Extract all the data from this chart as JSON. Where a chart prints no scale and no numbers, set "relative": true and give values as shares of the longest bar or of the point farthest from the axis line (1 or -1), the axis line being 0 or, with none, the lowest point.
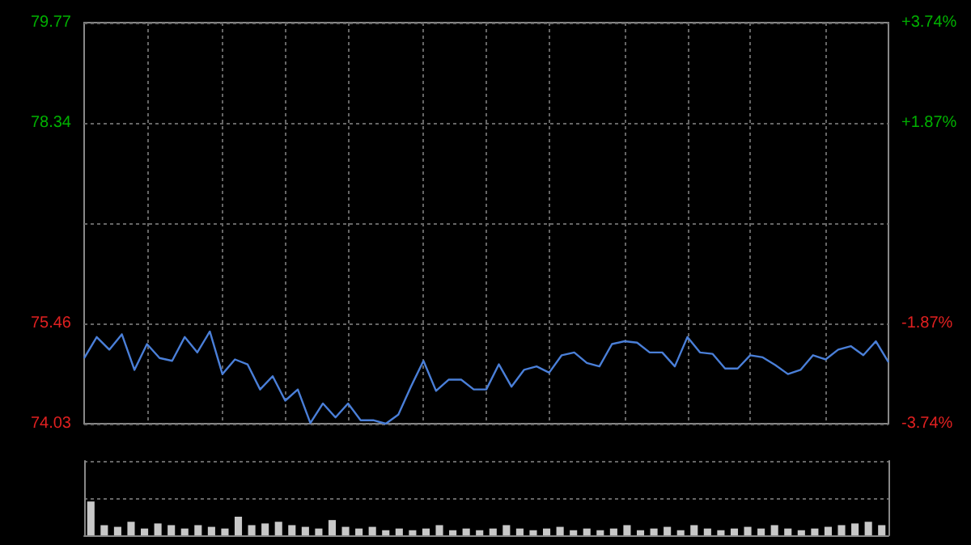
{
  "chart_data": [
    {
      "type": "line",
      "categories": [
        null,
        null,
        null,
        null,
        null,
        null,
        null,
        null,
        null,
        null,
        null,
        null,
        null,
        null,
        null,
        null,
        null,
        null,
        null,
        null,
        null,
        null,
        null,
        null,
        null,
        null,
        null,
        null,
        null,
        null,
        null,
        null,
        null,
        null,
        null,
        null,
        null,
        null,
        null,
        null,
        null,
        null,
        null,
        null,
        null,
        null,
        null,
        null,
        null,
        null,
        null,
        null,
        null,
        null,
        null,
        null,
        null,
        null,
        null,
        null,
        null,
        null,
        null,
        null,
        null
      ],
      "series": [
        {
          "color": "#4a7fd8",
          "values": [
            74.97,
            75.27,
            75.09,
            75.31,
            74.8,
            75.17,
            74.97,
            74.93,
            75.27,
            75.05,
            75.35,
            74.74,
            74.95,
            74.88,
            74.52,
            74.71,
            74.36,
            74.52,
            74.04,
            74.32,
            74.12,
            74.32,
            74.08,
            74.08,
            74.03,
            74.16,
            74.56,
            74.93,
            74.5,
            74.66,
            74.66,
            74.52,
            74.52,
            74.88,
            74.56,
            74.8,
            74.85,
            74.76,
            75.01,
            75.05,
            74.9,
            74.85,
            75.17,
            75.21,
            75.19,
            75.05,
            75.05,
            74.85,
            75.27,
            75.05,
            75.03,
            74.82,
            74.82,
            75.01,
            74.98,
            74.87,
            74.74,
            74.8,
            75.01,
            74.95,
            75.09,
            75.14,
            75.01,
            75.21,
            74.91
          ]
        }
      ],
      "ylim": [
        74.03,
        79.77
      ],
      "yticks": [
        74.03,
        75.46,
        {
          "value": 76.9,
          "label": null
        },
        78.34,
        79.77
      ],
      "y2lim": [
        -3.74,
        3.74
      ],
      "y2ticks": [
        {
          "value": -3.74,
          "label": "-3.74%"
        },
        {
          "value": -1.87,
          "label": "-1.87%"
        },
        {
          "value": 0,
          "label": null
        },
        {
          "value": 1.87,
          "label": "+1.87%"
        },
        {
          "value": 3.74,
          "label": "+3.74%"
        }
      ],
      "tick_labels": "y",
      "grid": true
    },
    {
      "type": "bar",
      "relative": true,
      "categories": [
        null,
        null,
        null,
        null,
        null,
        null,
        null,
        null,
        null,
        null,
        null,
        null,
        null,
        null,
        null,
        null,
        null,
        null,
        null,
        null,
        null,
        null,
        null,
        null,
        null,
        null,
        null,
        null,
        null,
        null,
        null,
        null,
        null,
        null,
        null,
        null,
        null,
        null,
        null,
        null,
        null,
        null,
        null,
        null,
        null,
        null,
        null,
        null,
        null,
        null,
        null,
        null,
        null,
        null,
        null,
        null,
        null,
        null,
        null,
        null
      ],
      "values": [
        1,
        0.3,
        0.25,
        0.4,
        0.2,
        0.35,
        0.3,
        0.2,
        0.3,
        0.25,
        0.2,
        0.55,
        0.3,
        0.35,
        0.4,
        0.3,
        0.25,
        0.2,
        0.45,
        0.25,
        0.2,
        0.25,
        0.15,
        0.2,
        0.15,
        0.2,
        0.3,
        0.15,
        0.2,
        0.15,
        0.2,
        0.3,
        0.2,
        0.15,
        0.2,
        0.25,
        0.15,
        0.2,
        0.15,
        0.2,
        0.3,
        0.15,
        0.2,
        0.25,
        0.15,
        0.3,
        0.2,
        0.15,
        0.2,
        0.25,
        0.2,
        0.3,
        0.2,
        0.15,
        0.2,
        0.25,
        0.3,
        0.35,
        0.4,
        0.3
      ],
      "color": "#c8c8c8",
      "grid": "y"
    }
  ]
}
